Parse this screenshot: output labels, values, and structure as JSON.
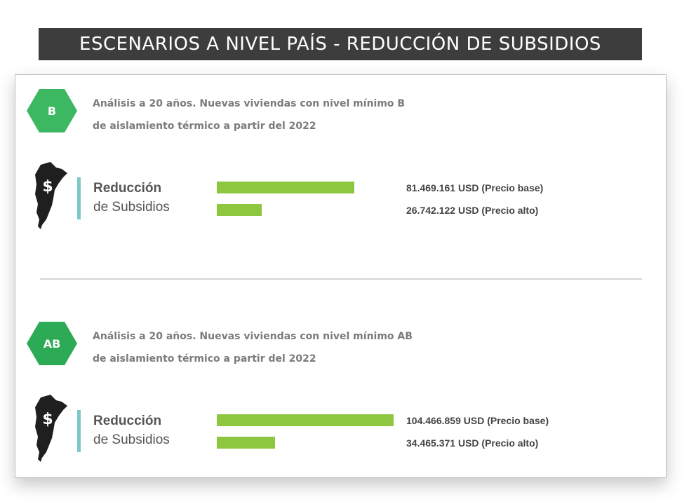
{
  "title": "ESCENARIOS A NIVEL PAÍS - REDUCCIÓN DE SUBSIDIOS",
  "colors": {
    "title_bg": "#3d3d3d",
    "hex_b": "#3db862",
    "hex_ab": "#2daa55",
    "bar": "#8dc63f",
    "accent": "#7ec7c9"
  },
  "chart_data": [
    {
      "type": "bar",
      "orientation": "horizontal",
      "badge": "B",
      "description_line1": "Análisis a 20 años. Nuevas viviendas con nivel mínimo B",
      "description_line2": "de aislamiento térmico a partir del 2022",
      "label_line1": "Reducción",
      "label_line2": "de Subsidios",
      "unit": "USD",
      "categories": [
        "Precio base",
        "Precio alto"
      ],
      "values": [
        81469161,
        26742122
      ],
      "value_labels": [
        "81.469.161 USD (Precio base)",
        "26.742.122 USD (Precio alto)"
      ],
      "xlim": [
        0,
        110000000
      ],
      "grid": false
    },
    {
      "type": "bar",
      "orientation": "horizontal",
      "badge": "AB",
      "description_line1": "Análisis a 20 años. Nuevas viviendas con nivel mínimo AB",
      "description_line2": "de aislamiento térmico a partir del 2022",
      "label_line1": "Reducción",
      "label_line2": "de Subsidios",
      "unit": "USD",
      "categories": [
        "Precio base",
        "Precio alto"
      ],
      "values": [
        104466859,
        34465371
      ],
      "value_labels": [
        "104.466.859 USD (Precio base)",
        "34.465.371 USD (Precio alto)"
      ],
      "xlim": [
        0,
        110000000
      ],
      "grid": false
    }
  ]
}
